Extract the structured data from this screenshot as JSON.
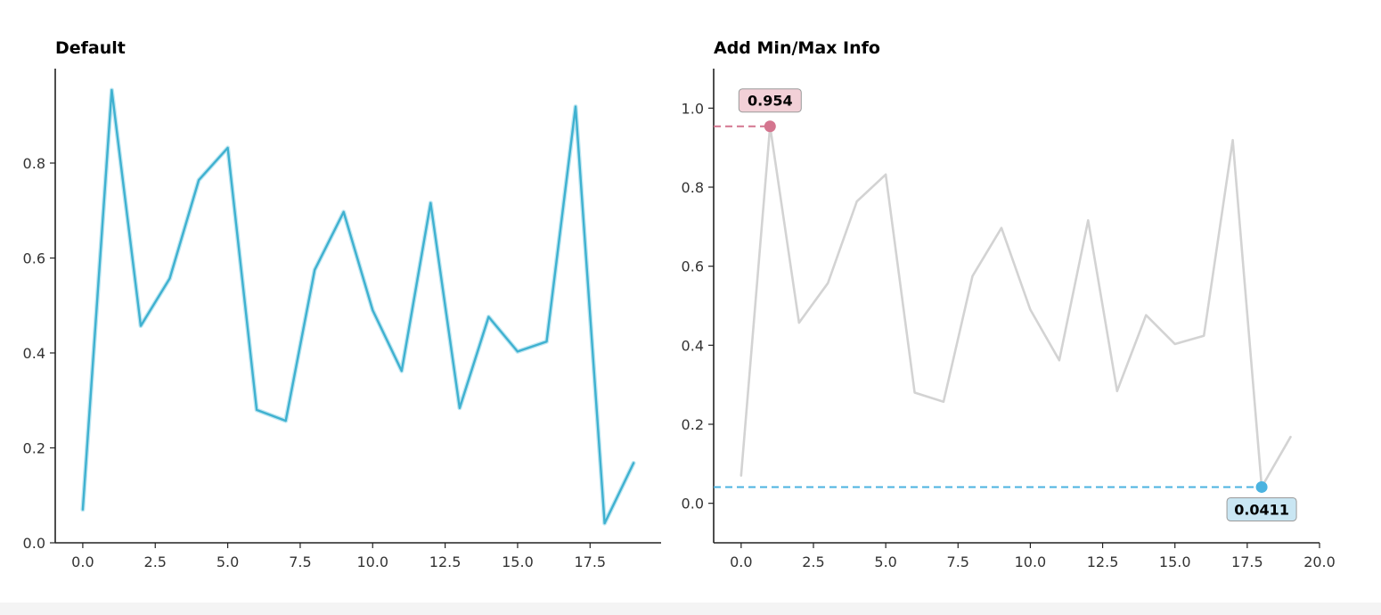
{
  "chart_data": [
    {
      "type": "line",
      "title": "Default",
      "x": [
        0,
        1,
        2,
        3,
        4,
        5,
        6,
        7,
        8,
        9,
        10,
        11,
        12,
        13,
        14,
        15,
        16,
        17,
        18,
        19
      ],
      "series": [
        {
          "values": [
            0.07,
            0.954,
            0.457,
            0.557,
            0.764,
            0.832,
            0.28,
            0.257,
            0.575,
            0.697,
            0.49,
            0.362,
            0.716,
            0.284,
            0.476,
            0.403,
            0.424,
            0.919,
            0.0411,
            0.168
          ]
        }
      ],
      "xlim": [
        -0.95,
        19.95
      ],
      "ylim": [
        0.0,
        0.999
      ],
      "xticks": [
        0.0,
        2.5,
        5.0,
        7.5,
        10.0,
        12.5,
        15.0,
        17.5
      ],
      "xtick_labels": [
        "0.0",
        "2.5",
        "5.0",
        "7.5",
        "10.0",
        "12.5",
        "15.0",
        "17.5"
      ],
      "yticks": [
        0.0,
        0.2,
        0.4,
        0.6,
        0.8
      ],
      "ytick_labels": [
        "0.0",
        "0.2",
        "0.4",
        "0.6",
        "0.8"
      ],
      "line_color": "#3fb1d0",
      "spines": "left-bottom",
      "grid": false
    },
    {
      "type": "line",
      "title": "Add Min/Max Info",
      "x": [
        0,
        1,
        2,
        3,
        4,
        5,
        6,
        7,
        8,
        9,
        10,
        11,
        12,
        13,
        14,
        15,
        16,
        17,
        18,
        19
      ],
      "series": [
        {
          "values": [
            0.07,
            0.954,
            0.457,
            0.557,
            0.764,
            0.832,
            0.28,
            0.257,
            0.575,
            0.697,
            0.49,
            0.362,
            0.716,
            0.284,
            0.476,
            0.403,
            0.424,
            0.919,
            0.0411,
            0.168
          ]
        }
      ],
      "xlim": [
        -0.95,
        20.0
      ],
      "ylim": [
        -0.1,
        1.1
      ],
      "xticks": [
        0.0,
        2.5,
        5.0,
        7.5,
        10.0,
        12.5,
        15.0,
        17.5,
        20.0
      ],
      "xtick_labels": [
        "0.0",
        "2.5",
        "5.0",
        "7.5",
        "10.0",
        "12.5",
        "15.0",
        "17.5",
        "20.0"
      ],
      "yticks": [
        0.0,
        0.2,
        0.4,
        0.6,
        0.8,
        1.0
      ],
      "ytick_labels": [
        "0.0",
        "0.2",
        "0.4",
        "0.6",
        "0.8",
        "1.0"
      ],
      "line_color": "#d3d3d3",
      "spines": "left-bottom",
      "grid": false,
      "annotations": {
        "max": {
          "x": 1,
          "y": 0.954,
          "label": "0.954",
          "color": "#d4758f",
          "box_color": "#f2d0d7"
        },
        "min": {
          "x": 18,
          "y": 0.0411,
          "label": "0.0411",
          "color": "#4bb3e0",
          "box_color": "#c9e6f3"
        }
      }
    }
  ]
}
